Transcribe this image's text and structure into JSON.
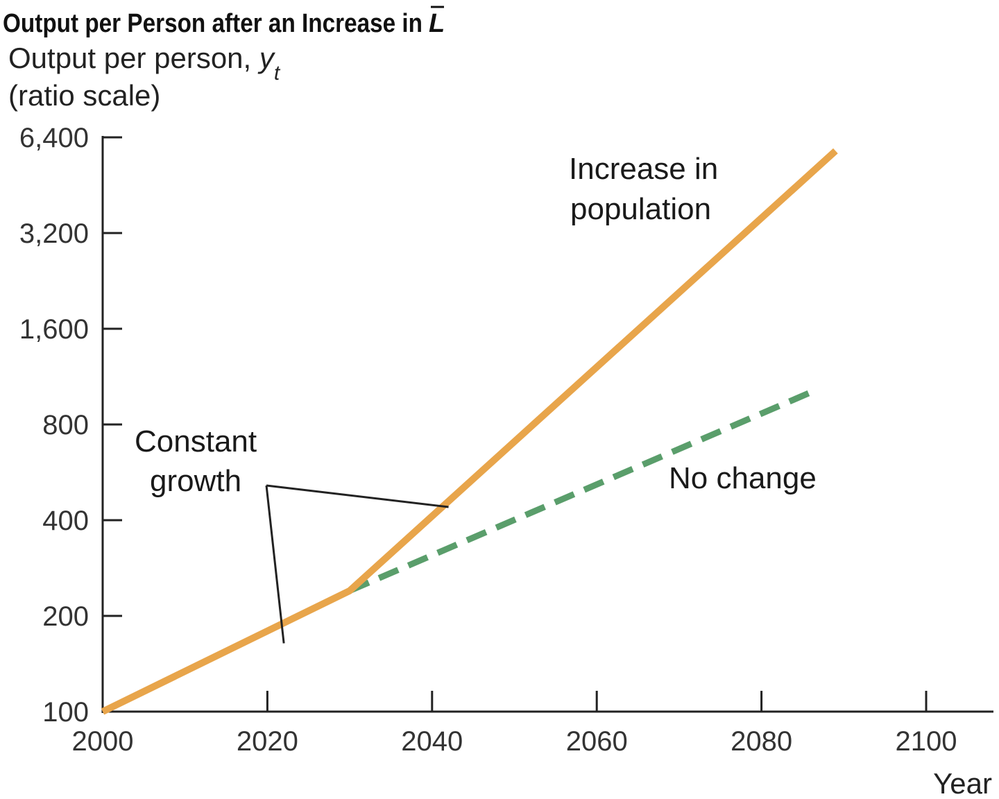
{
  "chart_data": {
    "type": "line",
    "title": "Output per Person after an Increase in ",
    "title_symbol": "L",
    "ylabel_line1": "Output per person, ",
    "ylabel_symbol": "y",
    "ylabel_subscript": "t",
    "ylabel_line2": "(ratio scale)",
    "xlabel": "Year",
    "y_scale": "log",
    "grid": false,
    "xlim": [
      2000,
      2108
    ],
    "ylim": [
      100,
      6400
    ],
    "x_ticks": [
      2000,
      2020,
      2040,
      2060,
      2080,
      2100
    ],
    "x_tick_labels": [
      "2000",
      "2020",
      "2040",
      "2060",
      "2080",
      "2100"
    ],
    "y_ticks": [
      100,
      200,
      400,
      800,
      1600,
      3200,
      6400
    ],
    "y_tick_labels": [
      "100",
      "200",
      "400",
      "800",
      "1,600",
      "3,200",
      "6,400"
    ],
    "series": [
      {
        "name": "Increase in population",
        "label_line1": "Increase in",
        "label_line2": "population",
        "color": "#E8A54B",
        "style": "solid",
        "x": [
          2000,
          2030,
          2089
        ],
        "y": [
          100,
          240,
          5800
        ]
      },
      {
        "name": "No change",
        "label_line1": "No change",
        "color": "#5A9E6B",
        "style": "dashed",
        "x": [
          2030,
          2086
        ],
        "y": [
          240,
          1010
        ]
      }
    ],
    "annotations": [
      {
        "text_line1": "Constant",
        "text_line2": "growth",
        "pointer_color": "#222222",
        "targets": [
          {
            "x": 2022,
            "y": 164
          },
          {
            "x": 2042,
            "y": 440
          }
        ]
      }
    ]
  }
}
